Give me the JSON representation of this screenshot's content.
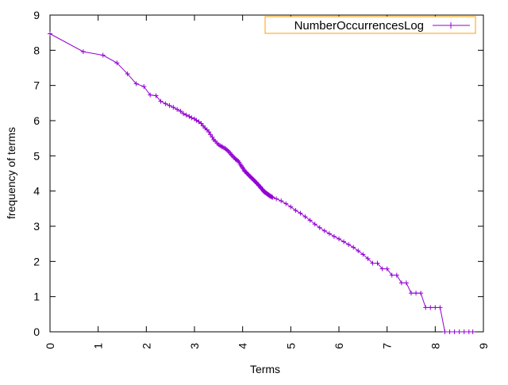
{
  "chart_data": {
    "type": "line",
    "title": "",
    "xlabel": "Terms",
    "ylabel": "frequency of terms",
    "xlim": [
      0,
      9
    ],
    "ylim": [
      0,
      9
    ],
    "x_ticks": [
      "0",
      "1",
      "2",
      "3",
      "4",
      "5",
      "6",
      "7",
      "8",
      "9"
    ],
    "y_ticks": [
      "0",
      "1",
      "2",
      "3",
      "4",
      "5",
      "6",
      "7",
      "8",
      "9"
    ],
    "grid": false,
    "legend_position": "top-right",
    "series": [
      {
        "name": "NumberOccurrencesLog",
        "color": "#9400d3",
        "marker": "plus",
        "x": [
          0.0,
          0.69,
          1.1,
          1.39,
          1.61,
          1.79,
          1.95,
          2.08,
          2.2,
          2.3,
          2.4,
          2.48,
          2.56,
          2.64,
          2.71,
          2.77,
          2.83,
          2.89,
          2.94,
          3.0,
          3.04,
          3.09,
          3.14,
          3.18,
          3.22,
          3.26,
          3.3,
          3.33,
          3.37,
          3.4,
          3.43,
          3.47,
          3.5,
          3.53,
          3.56,
          3.58,
          3.61,
          3.64,
          3.66,
          3.69,
          3.71,
          3.74,
          3.76,
          3.78,
          3.81,
          3.83,
          3.85,
          3.87,
          3.89,
          3.91,
          3.93,
          3.95,
          3.97,
          3.99,
          4.01,
          4.03,
          4.04,
          4.06,
          4.08,
          4.09,
          4.11,
          4.13,
          4.14,
          4.16,
          4.17,
          4.19,
          4.2,
          4.22,
          4.23,
          4.25,
          4.26,
          4.28,
          4.29,
          4.3,
          4.32,
          4.33,
          4.34,
          4.36,
          4.37,
          4.38,
          4.39,
          4.41,
          4.42,
          4.43,
          4.44,
          4.45,
          4.47,
          4.48,
          4.49,
          4.5,
          4.51,
          4.52,
          4.53,
          4.54,
          4.55,
          4.56,
          4.57,
          4.58,
          4.6,
          4.61,
          4.62,
          4.7,
          4.8,
          4.9,
          5.0,
          5.1,
          5.2,
          5.3,
          5.4,
          5.5,
          5.6,
          5.7,
          5.8,
          5.9,
          6.0,
          6.1,
          6.2,
          6.3,
          6.4,
          6.5,
          6.6,
          6.7,
          6.8,
          6.9,
          7.0,
          7.1,
          7.2,
          7.3,
          7.4,
          7.5,
          7.6,
          7.7,
          7.8,
          7.9,
          8.0,
          8.1,
          8.2,
          8.3,
          8.4,
          8.5,
          8.6,
          8.7,
          8.78
        ],
        "y": [
          8.47,
          7.96,
          7.86,
          7.64,
          7.33,
          7.05,
          6.97,
          6.73,
          6.71,
          6.55,
          6.48,
          6.43,
          6.38,
          6.32,
          6.27,
          6.2,
          6.16,
          6.12,
          6.08,
          6.05,
          6.01,
          5.97,
          5.92,
          5.85,
          5.79,
          5.74,
          5.68,
          5.61,
          5.53,
          5.46,
          5.42,
          5.36,
          5.32,
          5.29,
          5.27,
          5.25,
          5.23,
          5.21,
          5.18,
          5.15,
          5.12,
          5.08,
          5.04,
          5.01,
          4.97,
          4.94,
          4.91,
          4.89,
          4.87,
          4.85,
          4.81,
          4.76,
          4.72,
          4.68,
          4.64,
          4.6,
          4.57,
          4.55,
          4.52,
          4.5,
          4.48,
          4.45,
          4.43,
          4.41,
          4.39,
          4.37,
          4.35,
          4.33,
          4.31,
          4.29,
          4.27,
          4.25,
          4.23,
          4.21,
          4.19,
          4.17,
          4.15,
          4.13,
          4.11,
          4.09,
          4.07,
          4.05,
          4.03,
          4.01,
          3.99,
          3.97,
          3.96,
          3.95,
          3.94,
          3.93,
          3.92,
          3.91,
          3.9,
          3.89,
          3.88,
          3.87,
          3.86,
          3.85,
          3.84,
          3.83,
          3.82,
          3.78,
          3.72,
          3.64,
          3.55,
          3.45,
          3.37,
          3.27,
          3.17,
          3.06,
          2.96,
          2.87,
          2.79,
          2.71,
          2.64,
          2.56,
          2.48,
          2.4,
          2.3,
          2.2,
          2.08,
          1.95,
          1.95,
          1.79,
          1.79,
          1.61,
          1.61,
          1.39,
          1.39,
          1.1,
          1.1,
          1.1,
          0.69,
          0.69,
          0.69,
          0.69,
          0.0,
          0.0,
          0.0,
          0.0,
          0.0,
          0.0,
          0.0
        ]
      }
    ]
  }
}
